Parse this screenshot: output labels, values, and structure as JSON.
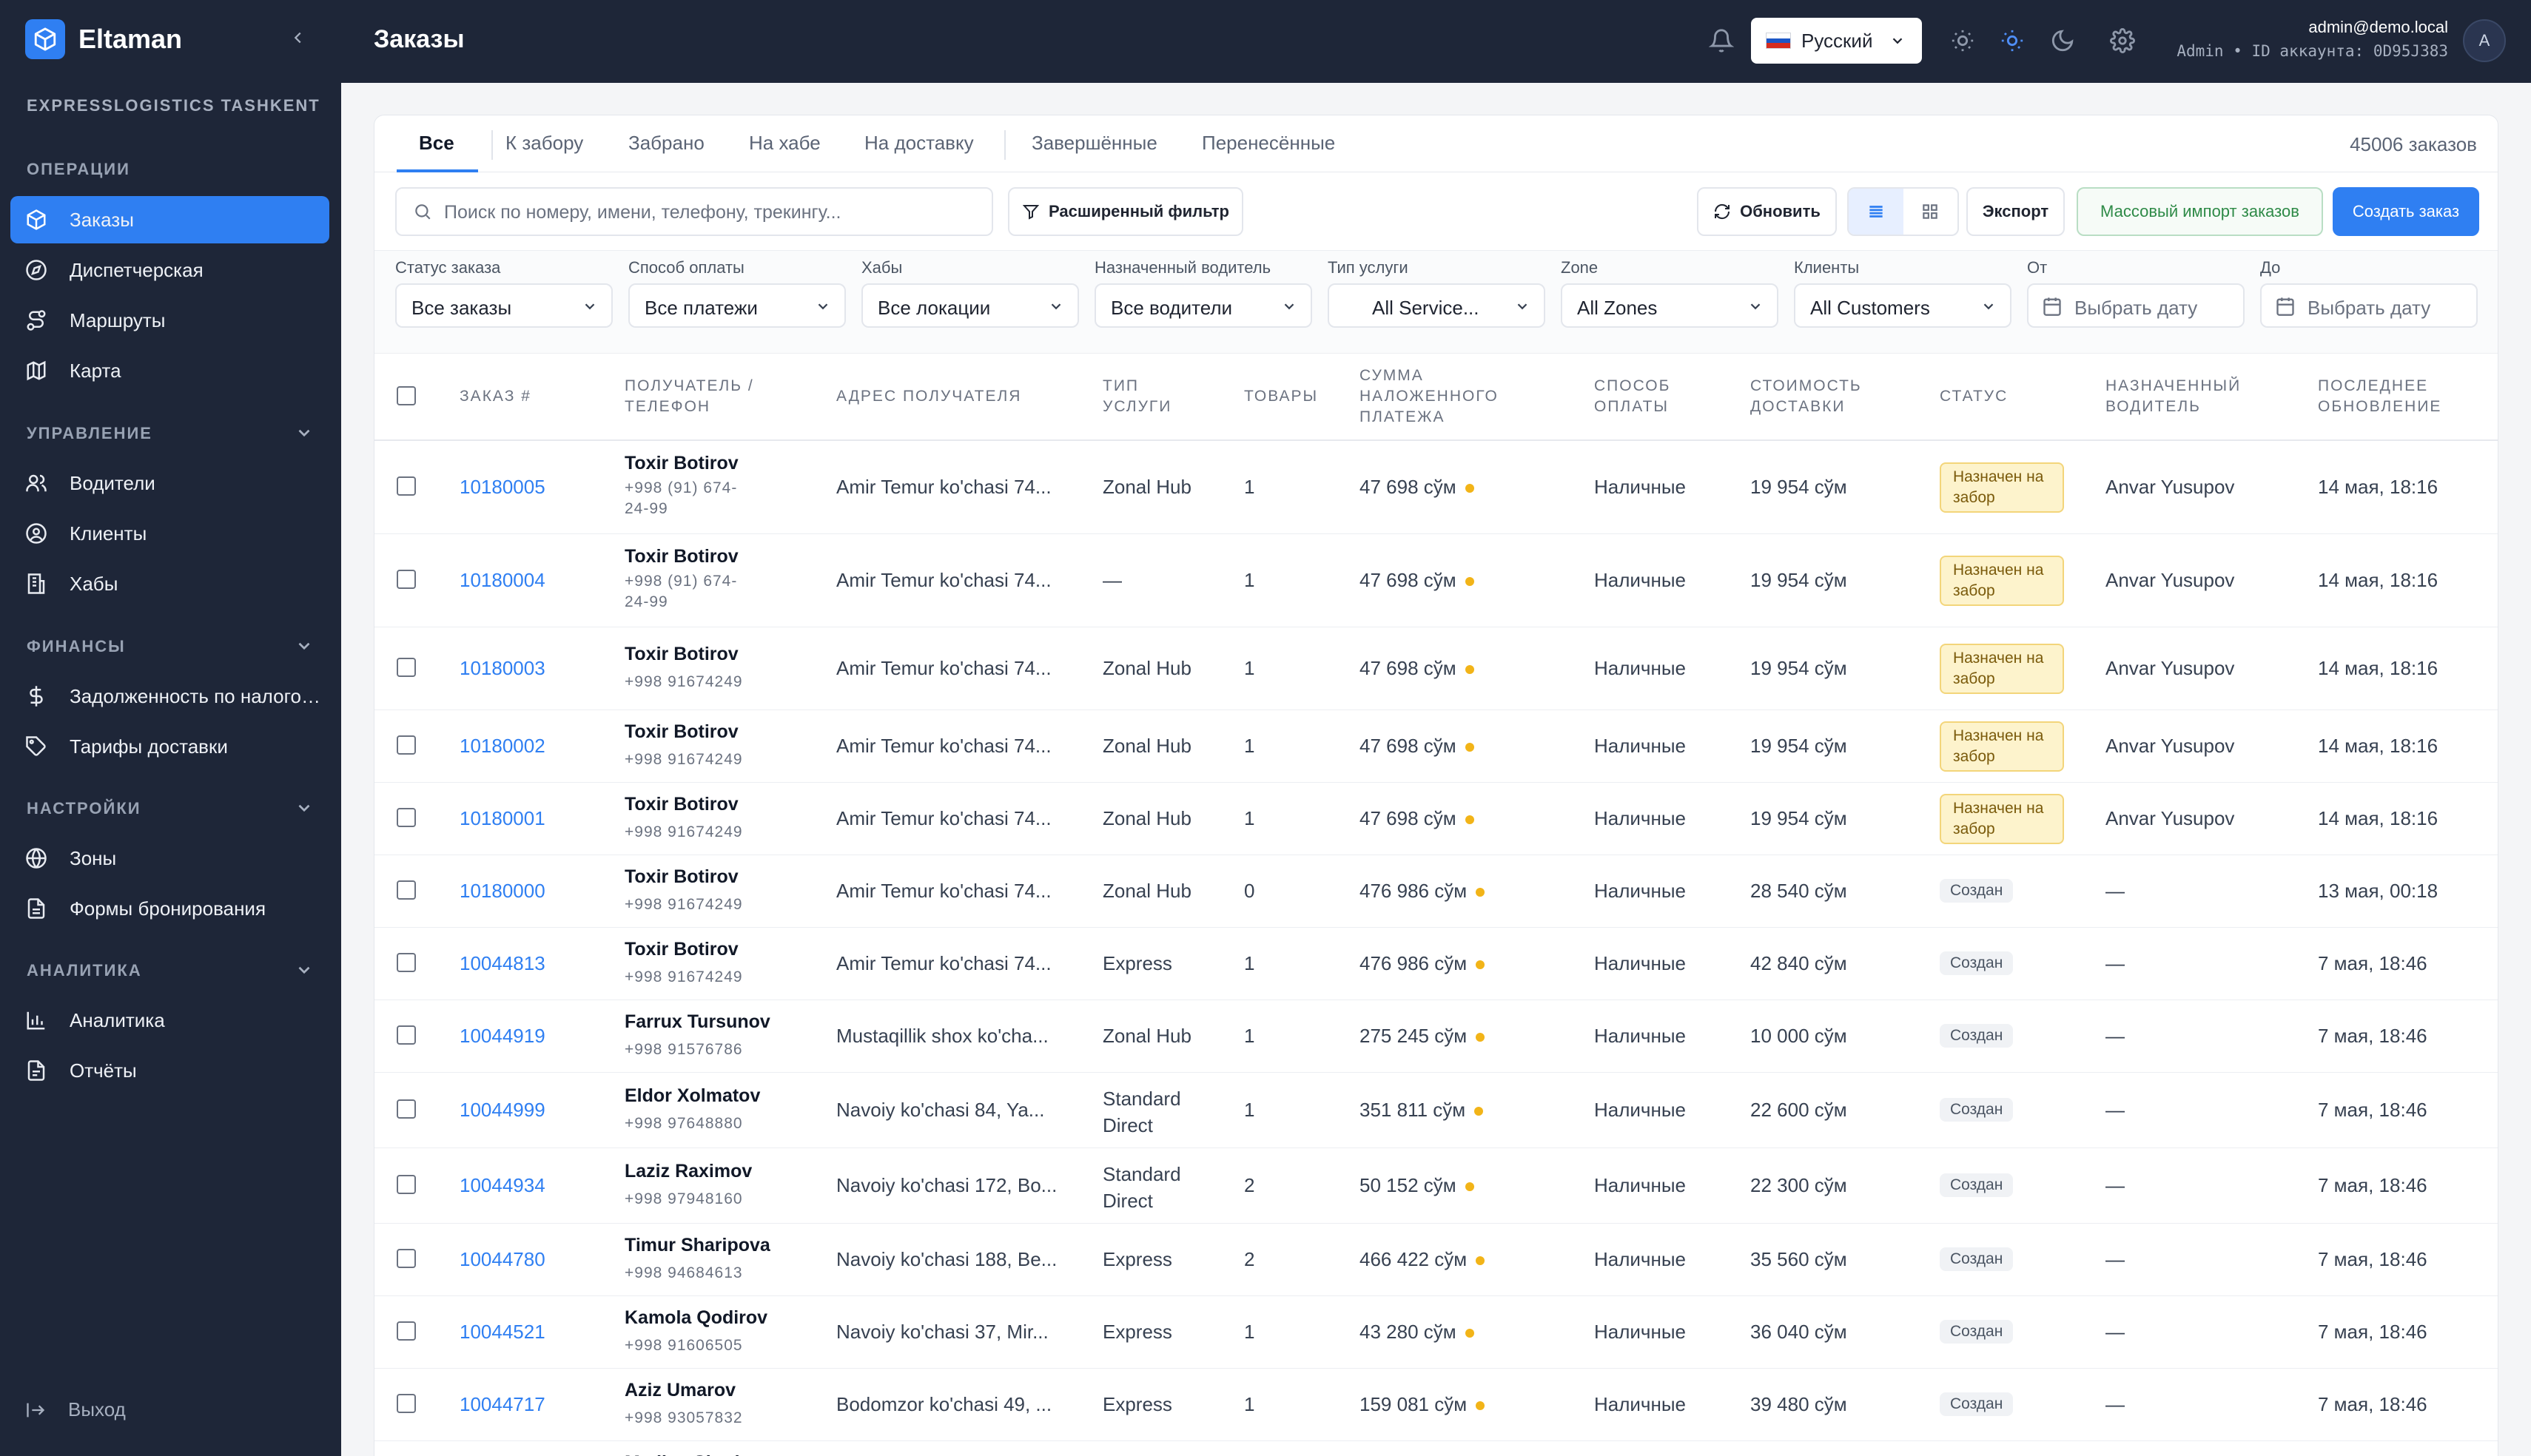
{
  "app": {
    "name": "Eltaman",
    "company": "EXPRESSLOGISTICS TASHKENT"
  },
  "sidebar": {
    "sections": [
      {
        "title": "ОПЕРАЦИИ"
      },
      {
        "title": "УПРАВЛЕНИЕ"
      },
      {
        "title": "ФИНАНСЫ"
      },
      {
        "title": "НАСТРОЙКИ"
      },
      {
        "title": "АНАЛИТИКА"
      }
    ],
    "items": [
      {
        "label": "Заказы",
        "icon": "box-icon",
        "active": true
      },
      {
        "label": "Диспетчерская",
        "icon": "compass-icon"
      },
      {
        "label": "Маршруты",
        "icon": "route-icon"
      },
      {
        "label": "Карта",
        "icon": "map-icon"
      },
      {
        "label": "Водители",
        "icon": "users-icon"
      },
      {
        "label": "Клиенты",
        "icon": "user-circle-icon"
      },
      {
        "label": "Хабы",
        "icon": "building-icon"
      },
      {
        "label": "Задолженность по налоговым",
        "icon": "dollar-icon"
      },
      {
        "label": "Тарифы доставки",
        "icon": "tag-icon"
      },
      {
        "label": "Зоны",
        "icon": "globe-icon"
      },
      {
        "label": "Формы бронирования",
        "icon": "form-icon"
      },
      {
        "label": "Аналитика",
        "icon": "chart-icon"
      },
      {
        "label": "Отчёты",
        "icon": "report-icon"
      }
    ],
    "logout": "Выход"
  },
  "topbar": {
    "title": "Заказы",
    "language": "Русский",
    "user_email": "admin@demo.local",
    "user_sub": "Admin • ID аккаунта: 0D95J383",
    "avatar": "A"
  },
  "tabs": [
    {
      "label": "Все",
      "active": true
    },
    {
      "label": "К забору"
    },
    {
      "label": "Забрано"
    },
    {
      "label": "На хабе"
    },
    {
      "label": "На доставку"
    },
    {
      "label": "Завершённые"
    },
    {
      "label": "Перенесённые"
    }
  ],
  "orders_count": "45006 заказов",
  "toolbar": {
    "search_placeholder": "Поиск по номеру, имени, телефону, трекингу...",
    "advanced_filter": "Расширенный фильтр",
    "refresh": "Обновить",
    "export": "Экспорт",
    "bulk_import": "Массовый импорт заказов",
    "create": "Создать заказ"
  },
  "filters": [
    {
      "label": "Статус заказа",
      "value": "Все заказы"
    },
    {
      "label": "Способ оплаты",
      "value": "Все платежи"
    },
    {
      "label": "Хабы",
      "value": "Все локации"
    },
    {
      "label": "Назначенный водитель",
      "value": "Все водители"
    },
    {
      "label": "Тип услуги",
      "value": "All Service..."
    },
    {
      "label": "Zone",
      "value": "All Zones"
    },
    {
      "label": "Клиенты",
      "value": "All Customers"
    },
    {
      "label": "От",
      "value": "Выбрать дату"
    },
    {
      "label": "До",
      "value": "Выбрать дату"
    }
  ],
  "columns": [
    "ЗАКАЗ #",
    "ПОЛУЧАТЕЛЬ / ТЕЛЕФОН",
    "АДРЕС ПОЛУЧАТЕЛЯ",
    "ТИП УСЛУГИ",
    "ТОВАРЫ",
    "СУММА НАЛОЖЕННОГО ПЛАТЕЖА",
    "СПОСОБ ОПЛАТЫ",
    "СТОИМОСТЬ ДОСТАВКИ",
    "СТАТУС",
    "НАЗНАЧЕННЫЙ ВОДИТЕЛЬ",
    "ПОСЛЕДНЕЕ ОБНОВЛЕНИЕ"
  ],
  "rows": [
    {
      "id": "10180005",
      "name": "Toxir Botirov",
      "phone": "+998 (91) 674-24-99",
      "address": "Amir Temur ko'chasi 74...",
      "service": "Zonal Hub",
      "items": "1",
      "cod": "47 698 сўм",
      "payment": "Наличные",
      "delivery": "19 954 сўм",
      "status": "Назначен на забор",
      "status_type": "pickup",
      "driver": "Anvar Yusupov",
      "updated": "14 мая, 18:16"
    },
    {
      "id": "10180004",
      "name": "Toxir Botirov",
      "phone": "+998 (91) 674-24-99",
      "address": "Amir Temur ko'chasi 74...",
      "service": "—",
      "items": "1",
      "cod": "47 698 сўм",
      "payment": "Наличные",
      "delivery": "19 954 сўм",
      "status": "Назначен на забор",
      "status_type": "pickup",
      "driver": "Anvar Yusupov",
      "updated": "14 мая, 18:16"
    },
    {
      "id": "10180003",
      "name": "Toxir Botirov",
      "phone": "+998 91674249",
      "address": "Amir Temur ko'chasi 74...",
      "service": "Zonal Hub",
      "items": "1",
      "cod": "47 698 сўм",
      "payment": "Наличные",
      "delivery": "19 954 сўм",
      "status": "Назначен на забор",
      "status_type": "pickup",
      "driver": "Anvar Yusupov",
      "updated": "14 мая, 18:16"
    },
    {
      "id": "10180002",
      "name": "Toxir Botirov",
      "phone": "+998 91674249",
      "address": "Amir Temur ko'chasi 74...",
      "service": "Zonal Hub",
      "items": "1",
      "cod": "47 698 сўм",
      "payment": "Наличные",
      "delivery": "19 954 сўм",
      "status": "Назначен на забор",
      "status_type": "pickup",
      "driver": "Anvar Yusupov",
      "updated": "14 мая, 18:16"
    },
    {
      "id": "10180001",
      "name": "Toxir Botirov",
      "phone": "+998 91674249",
      "address": "Amir Temur ko'chasi 74...",
      "service": "Zonal Hub",
      "items": "1",
      "cod": "47 698 сўм",
      "payment": "Наличные",
      "delivery": "19 954 сўм",
      "status": "Назначен на забор",
      "status_type": "pickup",
      "driver": "Anvar Yusupov",
      "updated": "14 мая, 18:16"
    },
    {
      "id": "10180000",
      "name": "Toxir Botirov",
      "phone": "+998 91674249",
      "address": "Amir Temur ko'chasi 74...",
      "service": "Zonal Hub",
      "items": "0",
      "cod": "476 986 сўм",
      "payment": "Наличные",
      "delivery": "28 540 сўм",
      "status": "Создан",
      "status_type": "created",
      "driver": "—",
      "updated": "13 мая, 00:18"
    },
    {
      "id": "10044813",
      "name": "Toxir Botirov",
      "phone": "+998 91674249",
      "address": "Amir Temur ko'chasi 74...",
      "service": "Express",
      "items": "1",
      "cod": "476 986 сўм",
      "payment": "Наличные",
      "delivery": "42 840 сўм",
      "status": "Создан",
      "status_type": "created",
      "driver": "—",
      "updated": "7 мая, 18:46"
    },
    {
      "id": "10044919",
      "name": "Farrux Tursunov",
      "phone": "+998 91576786",
      "address": "Mustaqillik shox ko'cha...",
      "service": "Zonal Hub",
      "items": "1",
      "cod": "275 245 сўм",
      "payment": "Наличные",
      "delivery": "10 000 сўм",
      "status": "Создан",
      "status_type": "created",
      "driver": "—",
      "updated": "7 мая, 18:46"
    },
    {
      "id": "10044999",
      "name": "Eldor Xolmatov",
      "phone": "+998 97648880",
      "address": "Navoiy ko'chasi 84, Ya...",
      "service": "Standard Direct",
      "items": "1",
      "cod": "351 811 сўм",
      "payment": "Наличные",
      "delivery": "22 600 сўм",
      "status": "Создан",
      "status_type": "created",
      "driver": "—",
      "updated": "7 мая, 18:46"
    },
    {
      "id": "10044934",
      "name": "Laziz Raximov",
      "phone": "+998 97948160",
      "address": "Navoiy ko'chasi 172, Bo...",
      "service": "Standard Direct",
      "items": "2",
      "cod": "50 152 сўм",
      "payment": "Наличные",
      "delivery": "22 300 сўм",
      "status": "Создан",
      "status_type": "created",
      "driver": "—",
      "updated": "7 мая, 18:46"
    },
    {
      "id": "10044780",
      "name": "Timur Sharipova",
      "phone": "+998 94684613",
      "address": "Navoiy ko'chasi 188, Be...",
      "service": "Express",
      "items": "2",
      "cod": "466 422 сўм",
      "payment": "Наличные",
      "delivery": "35 560 сўм",
      "status": "Создан",
      "status_type": "created",
      "driver": "—",
      "updated": "7 мая, 18:46"
    },
    {
      "id": "10044521",
      "name": "Kamola Qodirov",
      "phone": "+998 91606505",
      "address": "Navoiy ko'chasi 37, Mir...",
      "service": "Express",
      "items": "1",
      "cod": "43 280 сўм",
      "payment": "Наличные",
      "delivery": "36 040 сўм",
      "status": "Создан",
      "status_type": "created",
      "driver": "—",
      "updated": "7 мая, 18:46"
    },
    {
      "id": "10044717",
      "name": "Aziz Umarov",
      "phone": "+998 93057832",
      "address": "Bodomzor ko'chasi 49, ...",
      "service": "Express",
      "items": "1",
      "cod": "159 081 сўм",
      "payment": "Наличные",
      "delivery": "39 480 сўм",
      "status": "Создан",
      "status_type": "created",
      "driver": "—",
      "updated": "7 мая, 18:46"
    },
    {
      "id": "",
      "name": "Madina Sharipova",
      "phone": "",
      "address": "",
      "service": "",
      "items": "",
      "cod": "",
      "payment": "",
      "delivery": "",
      "status": "",
      "status_type": "",
      "driver": "",
      "updated": ""
    }
  ]
}
